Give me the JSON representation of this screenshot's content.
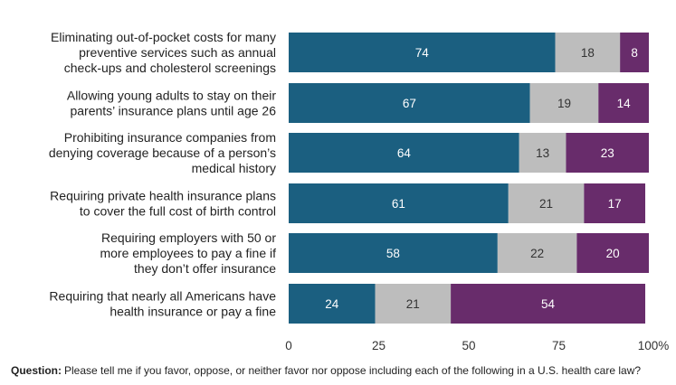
{
  "chart_data": {
    "type": "bar",
    "orientation": "horizontal",
    "stacked": true,
    "categories": [
      [
        "Eliminating out-of-pocket costs for many",
        "preventive services such as annual",
        "check-ups and cholesterol screenings"
      ],
      [
        "Allowing young adults to stay on their",
        "parents’ insurance plans until age 26"
      ],
      [
        "Prohibiting insurance companies from",
        "denying coverage because of a person’s",
        "medical history"
      ],
      [
        "Requiring private health insurance plans",
        "to cover the full cost of birth control"
      ],
      [
        "Requiring employers with 50 or",
        "more employees to pay a fine if",
        "they don’t offer insurance"
      ],
      [
        "Requiring that nearly all Americans have",
        "health insurance or pay a fine"
      ]
    ],
    "series": [
      {
        "values": [
          74,
          67,
          64,
          61,
          58,
          24
        ],
        "color": "#1b5f80",
        "label_color": "#ffffff"
      },
      {
        "values": [
          18,
          19,
          13,
          21,
          22,
          21
        ],
        "color": "#bdbdbd",
        "label_color": "#333333"
      },
      {
        "values": [
          8,
          14,
          23,
          17,
          20,
          54
        ],
        "color": "#682c6b",
        "label_color": "#ffffff"
      }
    ],
    "xlim": [
      0,
      100
    ],
    "xticks": [
      "0",
      "25",
      "50",
      "75",
      "100%"
    ],
    "grid": false,
    "legend": "none"
  },
  "footnote": {
    "label": "Question:",
    "text": "Please tell me if you favor, oppose, or neither favor nor oppose including each of the following in a U.S. health care law?"
  }
}
